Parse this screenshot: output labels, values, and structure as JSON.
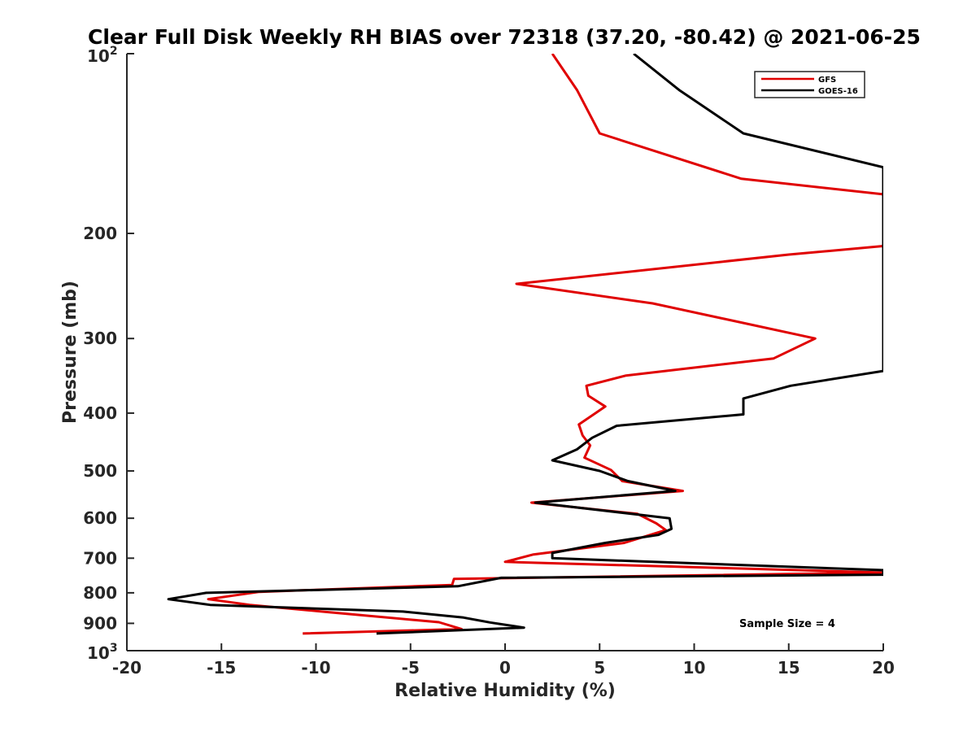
{
  "chart_data": {
    "type": "line",
    "title": "Clear Full Disk Weekly RH BIAS over 72318 (37.20, -80.42) @ 2021-06-25",
    "xlabel": "Relative Humidity (%)",
    "ylabel": "Pressure (mb)",
    "xlim": [
      -20,
      20
    ],
    "ylim": [
      100,
      1000
    ],
    "y_scale": "log",
    "y_reversed": true,
    "x_ticks": [
      "-20",
      "-15",
      "-10",
      "-5",
      "0",
      "5",
      "10",
      "15",
      "20"
    ],
    "x_tick_values": [
      -20,
      -15,
      -10,
      -5,
      0,
      5,
      10,
      15,
      20
    ],
    "y_ticks": [
      {
        "value": 100,
        "base": "10",
        "exp": "2"
      },
      {
        "value": 200,
        "label": "200"
      },
      {
        "value": 300,
        "label": "300"
      },
      {
        "value": 400,
        "label": "400"
      },
      {
        "value": 500,
        "label": "500"
      },
      {
        "value": 600,
        "label": "600"
      },
      {
        "value": 700,
        "label": "700"
      },
      {
        "value": 800,
        "label": "800"
      },
      {
        "value": 900,
        "label": "900"
      },
      {
        "value": 1000,
        "base": "10",
        "exp": "3"
      }
    ],
    "legend_position": "top-right",
    "grid": false,
    "annotation": "Sample Size = 4",
    "series": [
      {
        "name": "GFS",
        "color": "#e00000",
        "points": [
          [
            2.5,
            100
          ],
          [
            3.8,
            115
          ],
          [
            5.0,
            136
          ],
          [
            12.5,
            162
          ],
          [
            20,
            172
          ],
          [
            20,
            210
          ],
          [
            15,
            217
          ],
          [
            0.6,
            243
          ],
          [
            7.8,
            262
          ],
          [
            16.4,
            300
          ],
          [
            14.2,
            324
          ],
          [
            6.4,
            346
          ],
          [
            4.3,
            360
          ],
          [
            4.4,
            374
          ],
          [
            5.3,
            390
          ],
          [
            3.9,
            418
          ],
          [
            4.1,
            436
          ],
          [
            4.5,
            453
          ],
          [
            4.2,
            475
          ],
          [
            5.6,
            498
          ],
          [
            6.2,
            520
          ],
          [
            9.4,
            540
          ],
          [
            1.4,
            565
          ],
          [
            7.0,
            590
          ],
          [
            8.0,
            612
          ],
          [
            8.5,
            628
          ],
          [
            6.3,
            660
          ],
          [
            1.5,
            690
          ],
          [
            0,
            710
          ],
          [
            20,
            740
          ],
          [
            -2.7,
            758
          ],
          [
            -2.8,
            776
          ],
          [
            -13.0,
            797
          ],
          [
            -15.7,
            820
          ],
          [
            -13.5,
            838
          ],
          [
            -9.3,
            862
          ],
          [
            -3.5,
            896
          ],
          [
            -2.3,
            920
          ],
          [
            -10.7,
            936
          ]
        ]
      },
      {
        "name": "GOES-16",
        "color": "#000000",
        "points": [
          [
            6.8,
            100
          ],
          [
            9.2,
            115
          ],
          [
            12.6,
            136
          ],
          [
            20,
            155
          ],
          [
            20,
            340
          ],
          [
            15.1,
            360
          ],
          [
            12.6,
            378
          ],
          [
            12.6,
            402
          ],
          [
            5.9,
            420
          ],
          [
            4.6,
            440
          ],
          [
            3.8,
            460
          ],
          [
            2.5,
            480
          ],
          [
            5.0,
            500
          ],
          [
            6.5,
            520
          ],
          [
            9.0,
            540
          ],
          [
            1.6,
            565
          ],
          [
            8.7,
            600
          ],
          [
            8.8,
            625
          ],
          [
            8.1,
            640
          ],
          [
            5.3,
            660
          ],
          [
            2.5,
            686
          ],
          [
            2.5,
            700
          ],
          [
            20,
            733
          ],
          [
            20,
            746
          ],
          [
            -0.2,
            755
          ],
          [
            -2.5,
            780
          ],
          [
            -15.8,
            800
          ],
          [
            -17.8,
            820
          ],
          [
            -15.6,
            838
          ],
          [
            -5.4,
            860
          ],
          [
            -2.2,
            880
          ],
          [
            -0.8,
            897
          ],
          [
            1.0,
            915
          ],
          [
            -6.8,
            936
          ]
        ]
      }
    ]
  }
}
